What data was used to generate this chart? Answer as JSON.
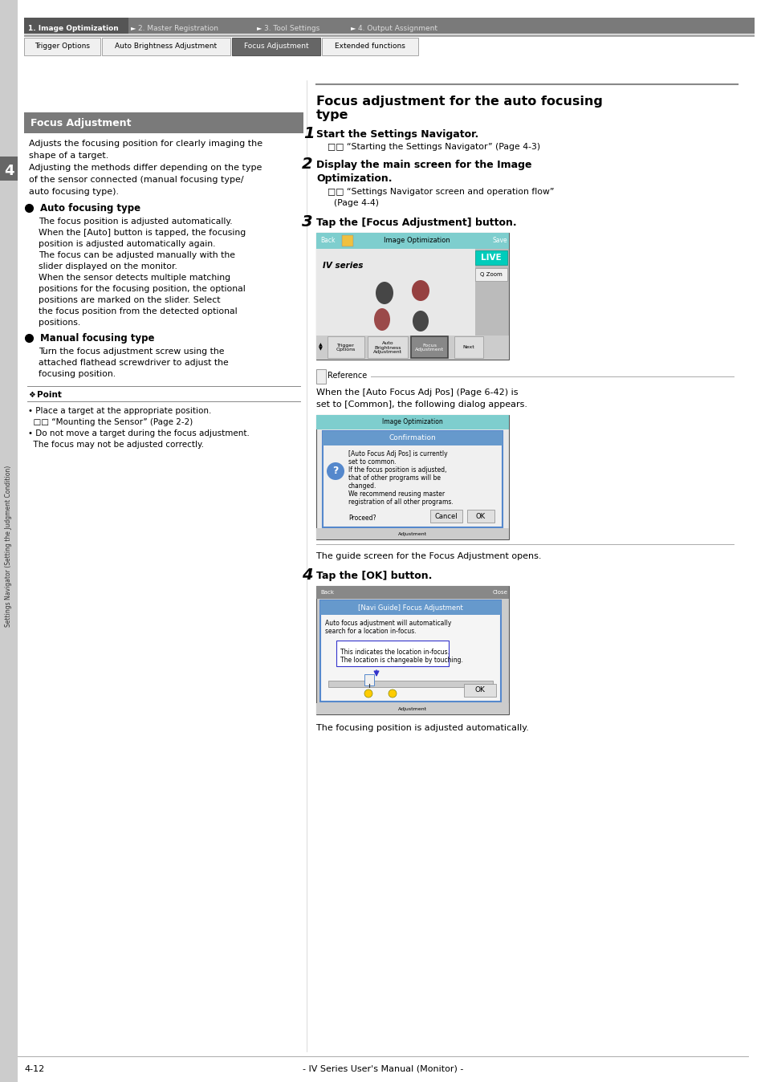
{
  "page_bg": "#ffffff",
  "page_num": "4-12",
  "page_footer": "- IV Series User's Manual (Monitor) -",
  "nav_items": [
    "1. Image Optimization",
    "2. Master Registration",
    "3. Tool Settings",
    "4. Output Assignment"
  ],
  "tab_items": [
    "Trigger Options",
    "Auto Brightness Adjustment",
    "Focus Adjustment",
    "Extended functions"
  ],
  "sidebar_text": "Settings Navigator (Setting the Judgment Condition)",
  "sidebar_number": "4",
  "left_title": "Focus Adjustment",
  "left_body_text": [
    "Adjusts the focusing position for clearly imaging the",
    "shape of a target.",
    "Adjusting the methods differ depending on the type",
    "of the sensor connected (manual focusing type/",
    "auto focusing type)."
  ],
  "auto_focusing_header": "Auto focusing type",
  "auto_focusing_text": [
    "The focus position is adjusted automatically.",
    "When the [Auto] button is tapped, the focusing",
    "position is adjusted automatically again.",
    "The focus can be adjusted manually with the",
    "slider displayed on the monitor.",
    "When the sensor detects multiple matching",
    "positions for the focusing position, the optional",
    "positions are marked on the slider. Select",
    "the focus position from the detected optional",
    "positions."
  ],
  "manual_focusing_header": "Manual focusing type",
  "manual_focusing_text": [
    "Turn the focus adjustment screw using the",
    "attached flathead screwdriver to adjust the",
    "focusing position."
  ],
  "point_header": "Point",
  "point_text": [
    "• Place a target at the appropriate position.",
    "  □□ “Mounting the Sensor” (Page 2-2)",
    "• Do not move a target during the focus adjustment.",
    "  The focus may not be adjusted correctly."
  ],
  "right_title_line1": "Focus adjustment for the auto focusing",
  "right_title_line2": "type",
  "step1_header": "Start the Settings Navigator.",
  "step1_sub": "□□ “Starting the Settings Navigator” (Page 4-3)",
  "step2_header1": "Display the main screen for the Image",
  "step2_header2": "Optimization.",
  "step2_sub1": "□□ “Settings Navigator screen and operation flow”",
  "step2_sub2": "(Page 4-4)",
  "step3_header": "Tap the [Focus Adjustment] button.",
  "reference_text1": "When the [Auto Focus Adj Pos] (Page 6-42) is",
  "reference_text2": "set to [Common], the following dialog appears.",
  "guide_text": "The guide screen for the Focus Adjustment opens.",
  "step4_header": "Tap the [OK] button.",
  "step4_footer": "The focusing position is adjusted automatically."
}
